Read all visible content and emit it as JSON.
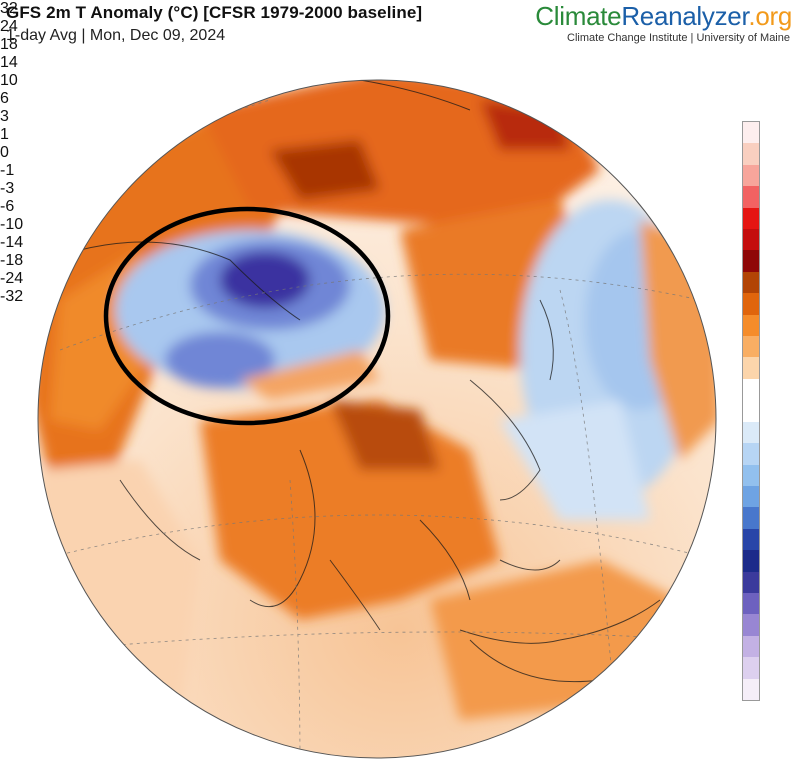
{
  "header": {
    "title": "GFS 2m T Anomaly (°C) [CFSR 1979-2000 baseline]",
    "subtitle": "1-day Avg | Mon, Dec 09, 2024"
  },
  "brand": {
    "part1": "Climate",
    "part2": "Reanalyzer",
    "part3": ".org",
    "affiliation": "Climate Change Institute | University of Maine",
    "colors": {
      "climate": "#2a8a3a",
      "reanalyzer": "#1b5fa8",
      "org": "#f29a1b"
    }
  },
  "map": {
    "projection": "orthographic globe centered on Asia",
    "annotation": "black ellipse highlighting Central Asia cold anomaly"
  },
  "legend": {
    "labels": [
      "32",
      "24",
      "18",
      "14",
      "10",
      "6",
      "3",
      "1",
      "0",
      "-1",
      "-3",
      "-6",
      "-10",
      "-14",
      "-18",
      "-24",
      "-32"
    ],
    "colors": [
      "#fdeeee",
      "#f9cfc0",
      "#f7a59b",
      "#f26262",
      "#e51512",
      "#c40d0d",
      "#8f0707",
      "#b24405",
      "#e0650c",
      "#f58c2a",
      "#f9ae63",
      "#fcd5ab",
      "#ffffff",
      "#ffffff",
      "#dbeaf8",
      "#b7d5f4",
      "#92c0ee",
      "#6ea3e3",
      "#4877cc",
      "#2845a8",
      "#1c2b8a",
      "#3b3a9c",
      "#6d61bf",
      "#9886d3",
      "#c3b1e4",
      "#ddd0ef",
      "#f5eef8"
    ]
  }
}
